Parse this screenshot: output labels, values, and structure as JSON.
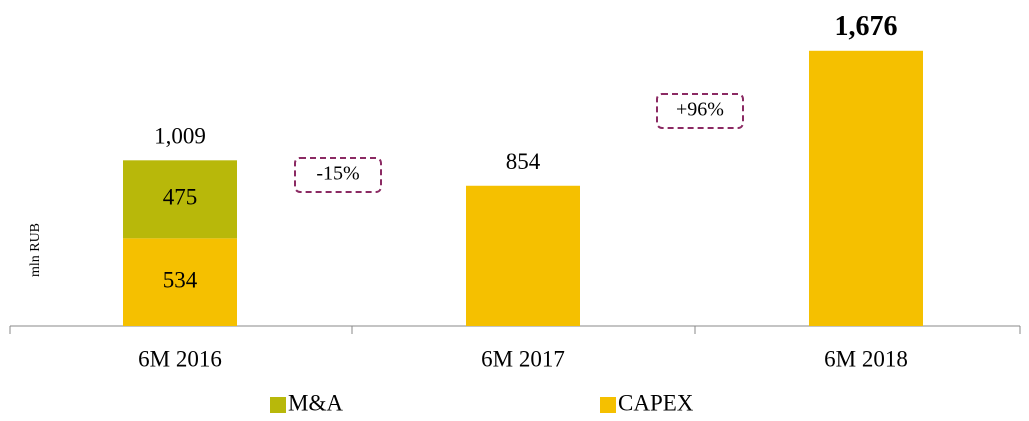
{
  "chart_data": {
    "type": "stacked_bar",
    "y_label": "mln RUB",
    "categories": [
      "6M 2016",
      "6M 2017",
      "6M 2018"
    ],
    "series": [
      {
        "name": "CAPEX",
        "color": "#f5c000",
        "values": [
          534,
          854,
          1676
        ]
      },
      {
        "name": "M&A",
        "color": "#b8b80a",
        "values": [
          475,
          null,
          null
        ]
      }
    ],
    "totals": [
      1009,
      854,
      1676
    ],
    "total_labels": [
      "1,009",
      "854",
      "1,676"
    ],
    "annotations": [
      {
        "text": "-15%"
      },
      {
        "text": "+96%"
      }
    ],
    "legend_order": [
      "M&A",
      "CAPEX"
    ],
    "ylim": [
      0,
      1900
    ]
  }
}
